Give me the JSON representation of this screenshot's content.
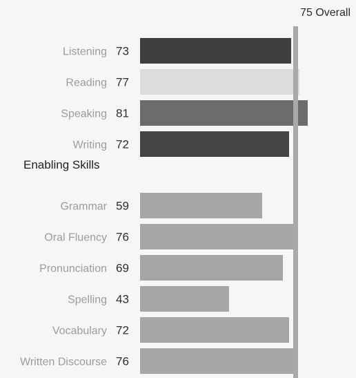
{
  "chart_data": {
    "type": "bar",
    "orientation": "horizontal",
    "overall": {
      "value": 75,
      "label": "Overall"
    },
    "sections": [
      {
        "heading": "",
        "items": [
          {
            "label": "Listening",
            "value": 73,
            "color": "#3e3e3e"
          },
          {
            "label": "Reading",
            "value": 77,
            "color": "#dcdcdc"
          },
          {
            "label": "Speaking",
            "value": 81,
            "color": "#6c6c6c"
          },
          {
            "label": "Writing",
            "value": 72,
            "color": "#454545"
          }
        ]
      },
      {
        "heading": "Enabling Skills",
        "items": [
          {
            "label": "Grammar",
            "value": 59,
            "color": "#a6a6a6"
          },
          {
            "label": "Oral Fluency",
            "value": 76,
            "color": "#a6a6a6"
          },
          {
            "label": "Pronunciation",
            "value": 69,
            "color": "#a6a6a6"
          },
          {
            "label": "Spelling",
            "value": 43,
            "color": "#a6a6a6"
          },
          {
            "label": "Vocabulary",
            "value": 72,
            "color": "#a6a6a6"
          },
          {
            "label": "Written Discourse",
            "value": 76,
            "color": "#a6a6a6"
          }
        ]
      }
    ],
    "overall_line_color": "#a9a9a9"
  }
}
